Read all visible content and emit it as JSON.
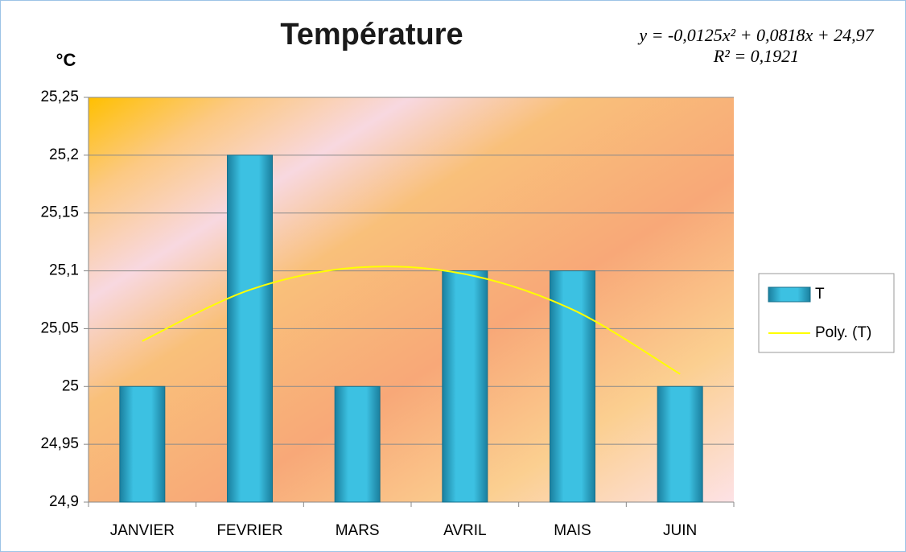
{
  "chart_data": {
    "type": "bar",
    "title": "Température",
    "y_label": "°C",
    "annotations": [
      "y = -0,0125x² + 0,0818x + 24,97",
      "R² = 0,1921"
    ],
    "categories": [
      "JANVIER",
      "FEVRIER",
      "MARS",
      "AVRIL",
      "MAIS",
      "JUIN"
    ],
    "series": [
      {
        "name": "T",
        "type": "bar",
        "color": "#31b5d6",
        "values": [
          25,
          25.2,
          25,
          25.1,
          25.1,
          25
        ]
      },
      {
        "name": "Poly. (T)",
        "type": "line",
        "color": "#ffff00",
        "values": [
          25.0393,
          25.0836,
          25.1029,
          25.0972,
          25.0665,
          25.0108
        ]
      }
    ],
    "ylim": [
      24.9,
      25.25
    ],
    "yticks": [
      {
        "value": 24.9,
        "label": "24,9"
      },
      {
        "value": 24.95,
        "label": "24,95"
      },
      25,
      {
        "value": 25.05,
        "label": "25,05"
      },
      {
        "value": 25.1,
        "label": "25,1"
      },
      {
        "value": 25.15,
        "label": "25,15"
      },
      {
        "value": 25.2,
        "label": "25,2"
      },
      {
        "value": 25.25,
        "label": "25,25"
      }
    ],
    "grid": true,
    "legend": "right"
  }
}
